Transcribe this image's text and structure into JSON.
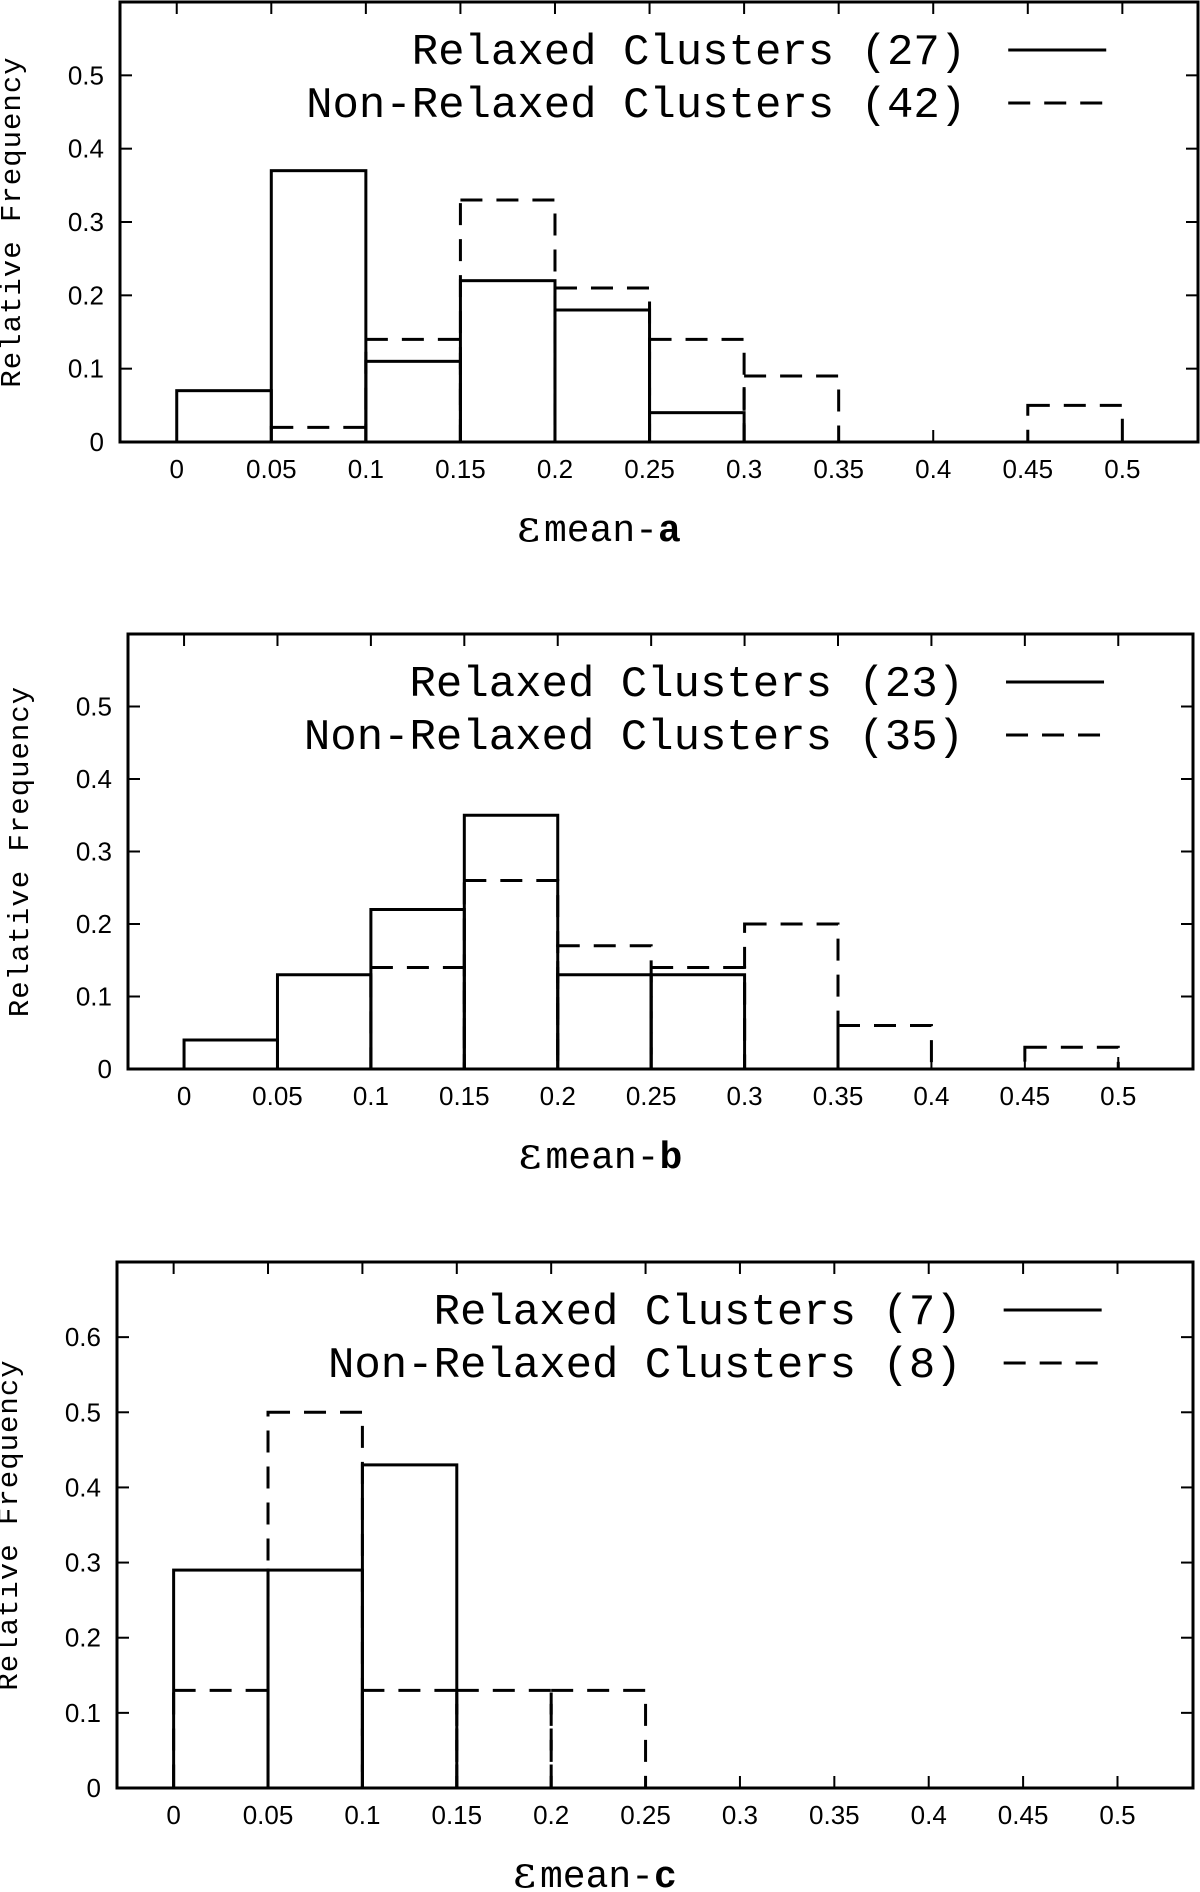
{
  "chart_data": [
    {
      "type": "bar",
      "ylabel": "Relative Frequency",
      "xlabel_symbol": "ε",
      "xlabel_text": "mean-",
      "xlabel_bold": "a",
      "bin_edges": [
        0,
        0.05,
        0.1,
        0.15,
        0.2,
        0.25,
        0.3,
        0.35,
        0.4,
        0.45,
        0.5
      ],
      "xticks": [
        "0",
        "0.05",
        "0.1",
        "0.15",
        "0.2",
        "0.25",
        "0.3",
        "0.35",
        "0.4",
        "0.45",
        "0.5"
      ],
      "yticks": [
        "0",
        "0.1",
        "0.2",
        "0.3",
        "0.4",
        "0.5"
      ],
      "xlim": [
        -0.03,
        0.54
      ],
      "ylim": [
        0,
        0.6
      ],
      "series": [
        {
          "name": "Relaxed Clusters",
          "count": "(27)",
          "style": "solid",
          "values": [
            0.07,
            0.37,
            0.11,
            0.22,
            0.18,
            0.04,
            0,
            0,
            0,
            0
          ]
        },
        {
          "name": "Non-Relaxed Clusters",
          "count": "(42)",
          "style": "dashed",
          "values": [
            0,
            0.02,
            0.14,
            0.33,
            0.21,
            0.14,
            0.09,
            0,
            0,
            0.05
          ]
        }
      ]
    },
    {
      "type": "bar",
      "ylabel": "Relative Frequency",
      "xlabel_symbol": "ε",
      "xlabel_text": "mean-",
      "xlabel_bold": "b",
      "bin_edges": [
        0,
        0.05,
        0.1,
        0.15,
        0.2,
        0.25,
        0.3,
        0.35,
        0.4,
        0.45,
        0.5
      ],
      "xticks": [
        "0",
        "0.05",
        "0.1",
        "0.15",
        "0.2",
        "0.25",
        "0.3",
        "0.35",
        "0.4",
        "0.45",
        "0.5"
      ],
      "yticks": [
        "0",
        "0.1",
        "0.2",
        "0.3",
        "0.4",
        "0.5"
      ],
      "xlim": [
        -0.03,
        0.54
      ],
      "ylim": [
        0,
        0.6
      ],
      "series": [
        {
          "name": "Relaxed Clusters",
          "count": "(23)",
          "style": "solid",
          "values": [
            0.04,
            0.13,
            0.22,
            0.35,
            0.13,
            0.13,
            0,
            0,
            0,
            0
          ]
        },
        {
          "name": "Non-Relaxed Clusters",
          "count": "(35)",
          "style": "dashed",
          "values": [
            0,
            0,
            0.14,
            0.26,
            0.17,
            0.14,
            0.2,
            0.06,
            0,
            0.03
          ]
        }
      ]
    },
    {
      "type": "bar",
      "ylabel": "Relative Frequency",
      "xlabel_symbol": "ε",
      "xlabel_text": "mean-",
      "xlabel_bold": "c",
      "bin_edges": [
        0,
        0.05,
        0.1,
        0.15,
        0.2,
        0.25,
        0.3,
        0.35,
        0.4,
        0.45,
        0.5
      ],
      "xticks": [
        "0",
        "0.05",
        "0.1",
        "0.15",
        "0.2",
        "0.25",
        "0.3",
        "0.35",
        "0.4",
        "0.45",
        "0.5"
      ],
      "yticks": [
        "0",
        "0.1",
        "0.2",
        "0.3",
        "0.4",
        "0.5",
        "0.6"
      ],
      "xlim": [
        -0.03,
        0.54
      ],
      "ylim": [
        0,
        0.7
      ],
      "series": [
        {
          "name": "Relaxed Clusters",
          "count": "(7)",
          "style": "solid",
          "values": [
            0.29,
            0.29,
            0.43,
            0,
            0,
            0,
            0,
            0,
            0,
            0
          ]
        },
        {
          "name": "Non-Relaxed Clusters",
          "count": "(8)",
          "style": "dashed",
          "values": [
            0.13,
            0.5,
            0.13,
            0.13,
            0.13,
            0,
            0,
            0,
            0,
            0
          ]
        }
      ]
    }
  ]
}
